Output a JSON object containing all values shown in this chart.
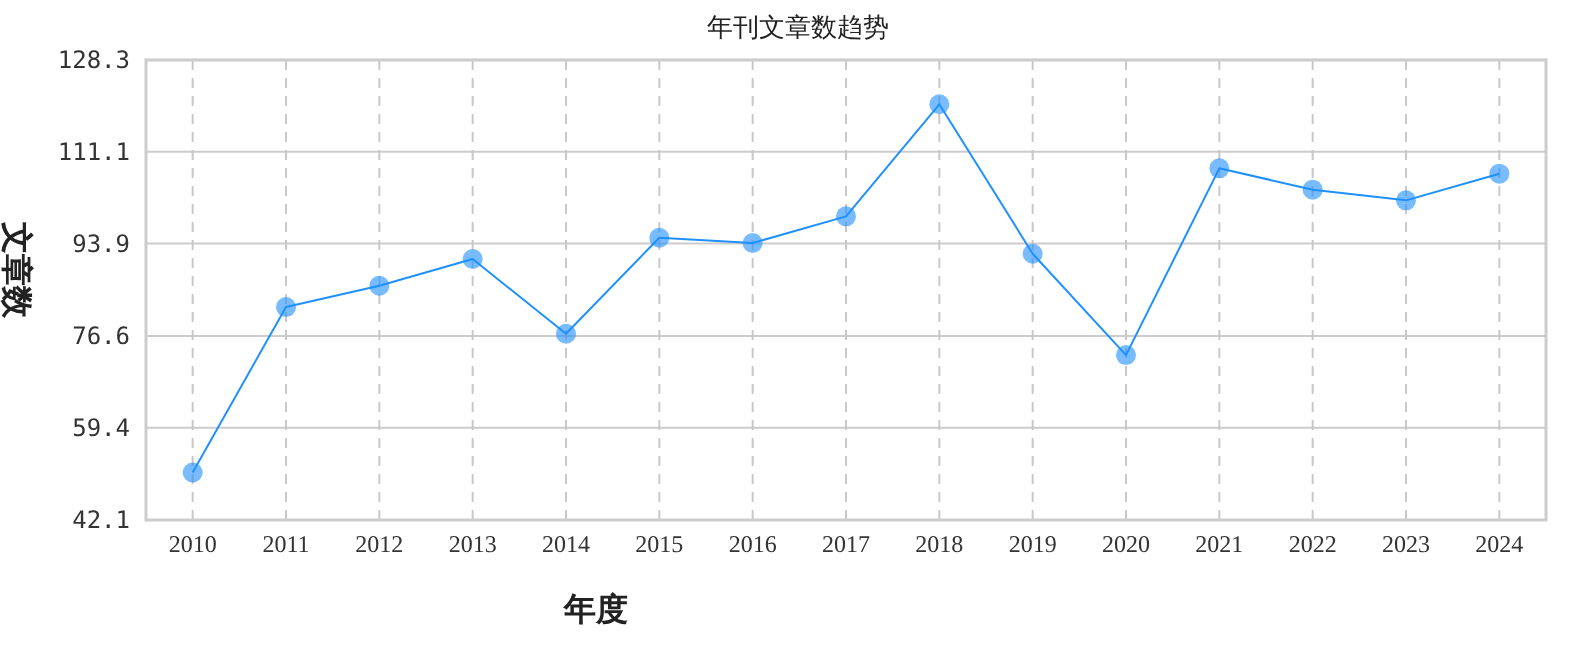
{
  "chart_data": {
    "type": "line",
    "title": "年刊文章数趋势",
    "xlabel": "年度",
    "ylabel": "文章数",
    "categories": [
      "2010",
      "2011",
      "2012",
      "2013",
      "2014",
      "2015",
      "2016",
      "2017",
      "2018",
      "2019",
      "2020",
      "2021",
      "2022",
      "2023",
      "2024"
    ],
    "series": [
      {
        "color": "#1e90ff",
        "values": [
          51,
          82,
          86,
          91,
          77,
          95,
          94,
          99,
          120,
          92,
          73,
          108,
          104,
          102,
          107
        ]
      }
    ],
    "ylim": [
      42.1,
      128.3
    ],
    "yticks": [
      42.1,
      59.4,
      76.6,
      93.9,
      111.1,
      128.3
    ],
    "grid": true,
    "marker": "circle",
    "line_style": "solid"
  }
}
